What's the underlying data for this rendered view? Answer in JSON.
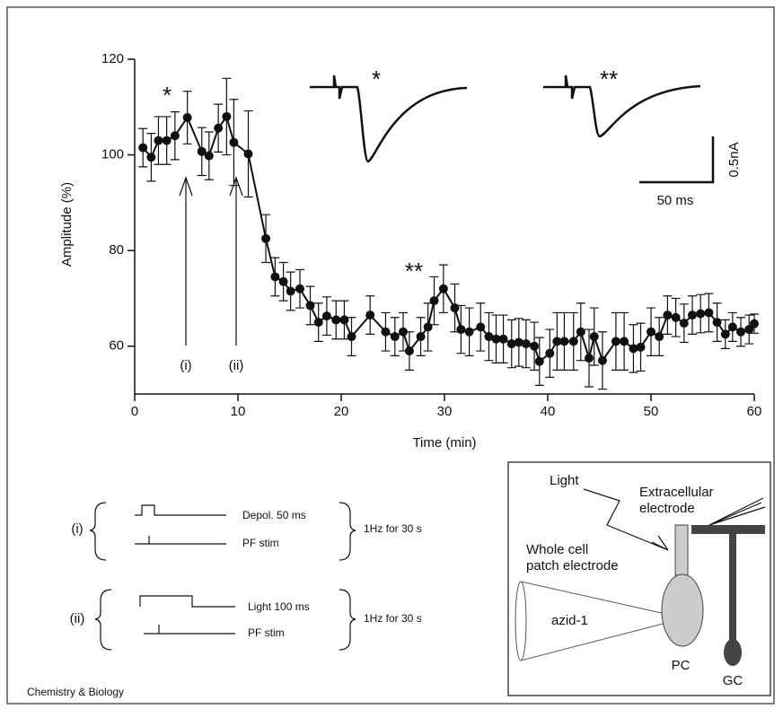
{
  "chart_data": {
    "type": "line",
    "xlabel": "Time (min)",
    "ylabel": "Amplitude (%)",
    "xlim": [
      0,
      60
    ],
    "xticks": [
      0,
      10,
      20,
      30,
      40,
      50,
      60
    ],
    "ylim": [
      50,
      120
    ],
    "yticks": [
      60,
      80,
      100,
      120
    ],
    "color": "#111111",
    "x": [
      0.8,
      1.6,
      2.3,
      3.1,
      3.9,
      5.1,
      6.5,
      7.2,
      8.1,
      8.9,
      9.6,
      11,
      12.7,
      13.6,
      14.4,
      15.1,
      16,
      17,
      17.8,
      18.6,
      19.5,
      20.3,
      21,
      22.8,
      24.3,
      25.2,
      26,
      26.6,
      27.7,
      28.4,
      29,
      29.9,
      31,
      31.6,
      32.4,
      33.5,
      34.3,
      35,
      35.7,
      36.5,
      37.2,
      37.9,
      38.7,
      39.2,
      40.2,
      40.9,
      41.6,
      42.5,
      43.2,
      44,
      44.5,
      45.3,
      46.6,
      47.4,
      48.3,
      49,
      50,
      50.8,
      51.6,
      52.4,
      53.2,
      54,
      54.8,
      55.6,
      56.4,
      57.2,
      57.9,
      58.7,
      59.5,
      60
    ],
    "values": [
      101.5,
      99.5,
      103,
      103,
      104,
      107.8,
      100.7,
      99.8,
      105.6,
      108,
      102.6,
      100.2,
      82.5,
      74.5,
      73.5,
      71.5,
      72,
      68.5,
      65,
      66.3,
      65.5,
      65.5,
      62,
      66.5,
      63,
      62,
      63,
      59,
      62,
      64,
      69.5,
      72,
      68,
      63.5,
      63,
      64,
      62,
      61.5,
      61.5,
      60.5,
      60.8,
      60.5,
      60,
      56.8,
      58.5,
      61,
      61,
      61,
      63,
      57.5,
      62,
      57,
      61,
      61,
      59.5,
      59.8,
      63,
      62,
      66.5,
      66,
      64.8,
      66.5,
      66.8,
      67,
      65,
      62.5,
      64,
      63,
      63.5,
      64.7
    ],
    "errors": [
      4,
      5,
      5,
      5,
      5,
      5.5,
      5,
      5,
      5,
      8,
      9,
      9,
      5,
      4,
      4,
      4,
      4,
      4,
      4,
      4,
      4,
      4,
      4,
      4,
      4,
      4,
      4,
      4,
      4,
      5,
      5,
      5,
      5,
      5,
      5,
      5,
      5,
      5,
      5,
      5,
      5,
      5,
      5,
      5,
      5,
      6,
      6,
      6,
      6,
      6,
      6,
      6,
      6,
      6,
      5,
      5,
      5,
      4,
      4,
      4,
      4,
      4,
      4,
      4,
      4,
      3,
      3,
      3,
      3,
      2
    ],
    "annotations": [
      "*",
      "**"
    ],
    "arrow_labels": [
      "(i)",
      "(ii)"
    ],
    "inset": {
      "labels": [
        "*",
        "**"
      ],
      "time_scale": "50 ms",
      "current_scale": "0.5nA"
    }
  },
  "protocol": [
    {
      "label": "(i)",
      "steps": [
        "Depol. 50 ms",
        "PF stim"
      ],
      "rate": "1Hz for 30 s"
    },
    {
      "label": "(ii)",
      "steps": [
        "Light 100 ms",
        "PF stim"
      ],
      "rate": "1Hz for 30 s"
    }
  ],
  "diagram": {
    "light": "Light",
    "extracellular": [
      "Extracellular",
      "electrode"
    ],
    "patch": [
      "Whole cell",
      "patch electrode"
    ],
    "compound": "azid-1",
    "pc": "PC",
    "gc": "GC"
  },
  "footer": "Chemistry & Biology"
}
